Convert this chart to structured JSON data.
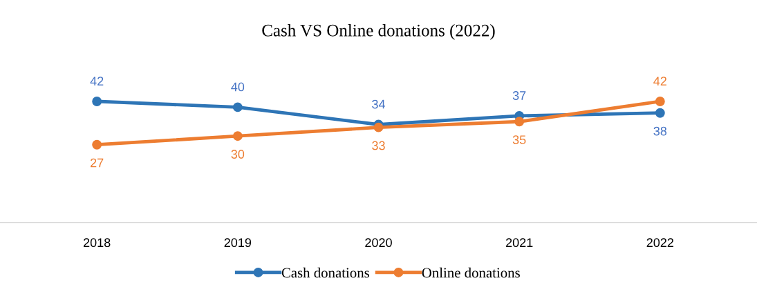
{
  "chart_data": {
    "type": "line",
    "title": "Cash VS Online donations (2022)",
    "categories": [
      "2018",
      "2019",
      "2020",
      "2021",
      "2022"
    ],
    "series": [
      {
        "name": "Cash donations",
        "color": "#2e75b6",
        "values": [
          42,
          40,
          34,
          37,
          38
        ]
      },
      {
        "name": "Online donations",
        "color": "#ed7d31",
        "values": [
          27,
          30,
          33,
          35,
          42
        ]
      }
    ],
    "tick_labels": "x",
    "data_labels": true,
    "marker": "circle",
    "line_style": "solid",
    "grid": false,
    "legend": "bottom"
  }
}
